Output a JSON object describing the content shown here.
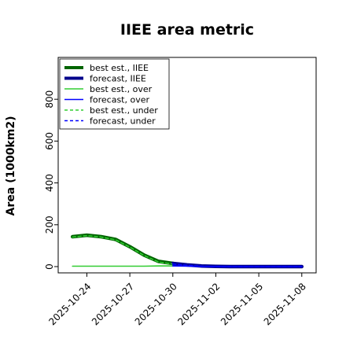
{
  "chart_data": {
    "type": "line",
    "title": "IIEE area metric",
    "xlabel": "",
    "ylabel": "Area (1000km2)",
    "x_tick_labels": [
      "2025-10-24",
      "2025-10-27",
      "2025-10-30",
      "2025-11-02",
      "2025-11-05",
      "2025-11-08"
    ],
    "highlighted_x_tick": "2025-10-30",
    "highlight_color": "#228b22",
    "y_ticks": [
      0,
      200,
      400,
      600,
      800
    ],
    "xlim": [
      "2025-10-22",
      "2025-11-09"
    ],
    "ylim": [
      -30,
      1000
    ],
    "grid": false,
    "legend_position": "top-left",
    "series": [
      {
        "name": "best est., IIEE",
        "color": "#006400",
        "style": "solid-thick",
        "x": [
          "2025-10-23",
          "2025-10-24",
          "2025-10-25",
          "2025-10-26",
          "2025-10-27",
          "2025-10-28",
          "2025-10-29",
          "2025-10-30"
        ],
        "values": [
          143,
          150,
          143,
          130,
          95,
          55,
          25,
          15
        ]
      },
      {
        "name": "forecast, IIEE",
        "color": "#00008b",
        "style": "solid-thick",
        "x": [
          "2025-10-30",
          "2025-10-31",
          "2025-11-01",
          "2025-11-02",
          "2025-11-03",
          "2025-11-04",
          "2025-11-05",
          "2025-11-06",
          "2025-11-07",
          "2025-11-08"
        ],
        "values": [
          15,
          8,
          3,
          1,
          0,
          0,
          0,
          0,
          0,
          0
        ]
      },
      {
        "name": "best est., over",
        "color": "#32cd32",
        "style": "solid",
        "x": [
          "2025-10-23",
          "2025-10-24",
          "2025-10-25",
          "2025-10-26",
          "2025-10-27",
          "2025-10-28",
          "2025-10-29",
          "2025-10-30"
        ],
        "values": [
          2,
          2,
          2,
          2,
          2,
          2,
          3,
          3
        ]
      },
      {
        "name": "forecast, over",
        "color": "#0000ff",
        "style": "solid",
        "x": [
          "2025-10-30",
          "2025-10-31",
          "2025-11-01",
          "2025-11-02",
          "2025-11-03",
          "2025-11-04",
          "2025-11-05",
          "2025-11-06",
          "2025-11-07",
          "2025-11-08"
        ],
        "values": [
          3,
          2,
          1,
          1,
          0,
          0,
          0,
          0,
          0,
          0
        ]
      },
      {
        "name": "best est., under",
        "color": "#32cd32",
        "style": "dashed",
        "x": [
          "2025-10-23",
          "2025-10-24",
          "2025-10-25",
          "2025-10-26",
          "2025-10-27",
          "2025-10-28",
          "2025-10-29",
          "2025-10-30"
        ],
        "values": [
          141,
          148,
          141,
          128,
          93,
          53,
          22,
          12
        ]
      },
      {
        "name": "forecast, under",
        "color": "#0000ff",
        "style": "dashed",
        "x": [
          "2025-10-30",
          "2025-10-31",
          "2025-11-01",
          "2025-11-02",
          "2025-11-03",
          "2025-11-04",
          "2025-11-05",
          "2025-11-06",
          "2025-11-07",
          "2025-11-08"
        ],
        "values": [
          12,
          6,
          2,
          0,
          0,
          0,
          0,
          0,
          0,
          0
        ]
      }
    ]
  }
}
